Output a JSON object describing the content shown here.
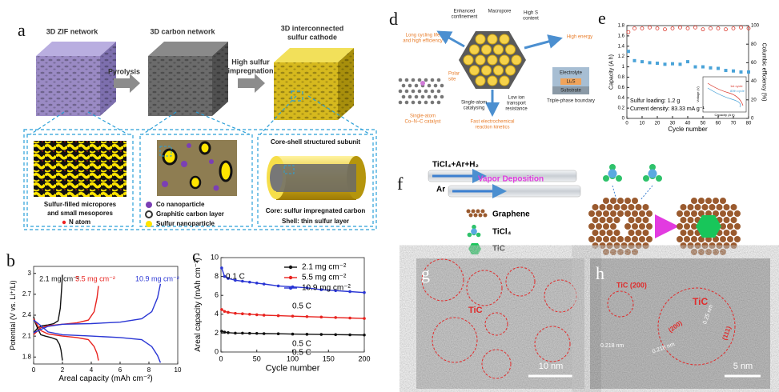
{
  "panel_a": {
    "label": "a",
    "title_1": "3D ZIF network",
    "title_2": "3D carbon network",
    "title_3": [
      "3D interconnected",
      "sulfur cathode"
    ],
    "arrow_1": "Pyrolysis",
    "arrow_2": [
      "High sulfur",
      "impregnation"
    ],
    "box_1": [
      "Sulfur-filled micropores",
      "and small mesopores"
    ],
    "n_atom": "N atom",
    "legend": [
      "Co nanoparticle",
      "Graphitic carbon layer",
      "Sulfur nanoparticle"
    ],
    "box_3_title": "Core-shell structured subunit",
    "box_3": [
      "Core: sulfur impregnated carbon",
      "Shell: thin sulfur layer"
    ]
  },
  "panel_d": {
    "label": "d",
    "confinement": [
      "Enhanced",
      "confinement"
    ],
    "macropore": "Macropore",
    "high_s": [
      "High S",
      "content"
    ],
    "cycling": [
      "Long cycling life",
      "and high efficiency"
    ],
    "energy": "High energy",
    "polar": [
      "Polar",
      "site"
    ],
    "catalyst": [
      "Single-atom",
      "Co–N–C catalyst"
    ],
    "catalysing": [
      "Single-atom",
      "catalysing"
    ],
    "transport": [
      "Low ion",
      "transport",
      "resistance"
    ],
    "electrolyte": "Electrolyte",
    "li2s": "Li₂S",
    "substrate": "Substrate",
    "boundary": "Triple-phase boundary",
    "kinetics": [
      "Fast electrochemical",
      "reaction kinetics"
    ]
  },
  "panel_f": {
    "label": "f",
    "gas": "TiCl₄+Ar+H₂",
    "process": "Vapor Deposition",
    "ar": "Ar",
    "legend": [
      "Graphene",
      "TiCl₄",
      "TiC"
    ]
  },
  "panel_g": {
    "label": "g",
    "phase": "TiC",
    "scale": "10 nm"
  },
  "panel_h": {
    "label": "h",
    "plane_1": "TiC (200)",
    "phase": "TiC",
    "plane_2": "(200)",
    "d_1": "0.25 nm",
    "d_2": "0.218 nm",
    "d_3": "0.218 nm",
    "plane_3": "(111)",
    "scale": "5 nm"
  },
  "chart_data": [
    {
      "type": "line",
      "panel_label": "b",
      "xlabel": "Areal capacity (mAh cm⁻²)",
      "ylabel": "Potential (V vs. Li⁺/Li)",
      "xlim": [
        0,
        10
      ],
      "xticks": [
        0,
        2,
        4,
        6,
        8,
        10
      ],
      "ylim": [
        1.7,
        3.1
      ],
      "yticks": [
        1.8,
        2.1,
        2.4,
        2.7,
        3.0
      ],
      "legend": "inline",
      "series": [
        {
          "name": "2.1 mg cm⁻²",
          "color": "#111111",
          "marker": "none",
          "x": [
            0,
            0.1,
            0.3,
            0.5,
            0.8,
            1.2,
            1.6,
            1.8,
            1.9,
            2.0,
            null,
            0,
            0.3,
            0.6,
            1.0,
            1.4,
            1.7,
            1.85,
            1.95,
            2.0
          ],
          "values": [
            2.38,
            2.3,
            2.2,
            2.12,
            2.1,
            2.08,
            2.05,
            1.98,
            1.9,
            1.75,
            null,
            2.15,
            2.22,
            2.25,
            2.26,
            2.28,
            2.32,
            2.5,
            2.8,
            2.98
          ]
        },
        {
          "name": "5.5 mg cm⁻²",
          "color": "#e8231f",
          "marker": "none",
          "x": [
            0,
            0.2,
            0.5,
            1,
            2,
            3,
            3.8,
            4.2,
            4.4,
            4.5,
            null,
            0,
            0.5,
            1,
            2,
            3,
            3.8,
            4.2,
            4.4,
            4.5
          ],
          "values": [
            2.35,
            2.28,
            2.18,
            2.13,
            2.1,
            2.08,
            2.05,
            1.95,
            1.85,
            1.75,
            null,
            2.12,
            2.22,
            2.25,
            2.27,
            2.29,
            2.33,
            2.45,
            2.65,
            2.82
          ]
        },
        {
          "name": "10.9 mg cm⁻²",
          "color": "#2a36d4",
          "marker": "none",
          "x": [
            0,
            0.5,
            1,
            2,
            4,
            6,
            7.5,
            8.2,
            8.6,
            8.8,
            null,
            0,
            1,
            2,
            4,
            6,
            7.5,
            8.2,
            8.6,
            8.8
          ],
          "values": [
            2.33,
            2.25,
            2.16,
            2.12,
            2.1,
            2.08,
            2.05,
            1.95,
            1.82,
            1.72,
            null,
            2.15,
            2.24,
            2.27,
            2.28,
            2.3,
            2.35,
            2.45,
            2.65,
            2.85
          ]
        }
      ]
    },
    {
      "type": "line",
      "panel_label": "c",
      "xlabel": "Cycle number",
      "ylabel": "Areal capacity (mAh cm⁻²)",
      "xlim": [
        0,
        200
      ],
      "xticks": [
        0,
        50,
        100,
        150,
        200
      ],
      "ylim": [
        0,
        10
      ],
      "yticks": [
        0,
        2,
        4,
        6,
        8,
        10
      ],
      "legend": "upper right",
      "annotations": [
        "0.1 C",
        "0.5 C",
        "0.5 C",
        "0.5 C"
      ],
      "series": [
        {
          "name": "2.1 mg cm⁻²",
          "color": "#111111",
          "marker": "circle",
          "x": [
            1,
            5,
            10,
            20,
            30,
            40,
            50,
            60,
            80,
            100,
            120,
            140,
            160,
            180,
            200
          ],
          "values": [
            2.2,
            2.1,
            2.05,
            2.0,
            2.0,
            1.98,
            1.97,
            1.95,
            1.93,
            1.9,
            1.88,
            1.86,
            1.84,
            1.82,
            1.8
          ]
        },
        {
          "name": "5.5 mg cm⁻²",
          "color": "#e8231f",
          "marker": "circle",
          "x": [
            1,
            5,
            10,
            20,
            30,
            40,
            50,
            60,
            80,
            100,
            120,
            140,
            160,
            180,
            200
          ],
          "values": [
            4.5,
            4.3,
            4.2,
            4.1,
            4.05,
            4.0,
            3.95,
            3.9,
            3.85,
            3.8,
            3.75,
            3.7,
            3.65,
            3.6,
            3.55
          ]
        },
        {
          "name": "10.9 mg cm⁻²",
          "color": "#2a36d4",
          "marker": "circle",
          "x": [
            1,
            5,
            10,
            20,
            30,
            40,
            50,
            60,
            80,
            100,
            120,
            140,
            160,
            180,
            200
          ],
          "values": [
            8.9,
            8.0,
            7.8,
            7.6,
            7.5,
            7.4,
            7.3,
            7.2,
            7.0,
            6.9,
            6.8,
            6.6,
            6.5,
            6.4,
            6.3
          ]
        }
      ]
    },
    {
      "type": "scatter",
      "panel_label": "e",
      "xlabel": "Cycle number",
      "ylabel": "Capacity (A h)",
      "y2label": "Columbic efficiency (%)",
      "xlim": [
        0,
        80
      ],
      "xticks": [
        0,
        10,
        20,
        30,
        40,
        50,
        60,
        70,
        80
      ],
      "ylim": [
        0,
        1.8
      ],
      "yticks": [
        0,
        0.2,
        0.4,
        0.6,
        0.8,
        1.0,
        1.2,
        1.4,
        1.6,
        1.8
      ],
      "y2lim": [
        0,
        100
      ],
      "y2ticks": [
        0,
        20,
        40,
        60,
        80,
        100
      ],
      "annotations": [
        "Sulfur loading: 1.2 g",
        "Current density: 83.33 mA g⁻¹"
      ],
      "inset": {
        "xlabel": "Capacity (A h)",
        "ylabel": "Voltage (V)",
        "legend": [
          "1st cycle",
          "80th cycle"
        ]
      },
      "series": [
        {
          "name": "Capacity",
          "color": "#4aa3d8",
          "marker": "square",
          "x": [
            1,
            5,
            10,
            15,
            20,
            25,
            30,
            35,
            40,
            45,
            50,
            55,
            60,
            65,
            70,
            75,
            80
          ],
          "values": [
            1.3,
            1.12,
            1.1,
            1.08,
            1.07,
            1.05,
            1.06,
            1.05,
            1.1,
            1.0,
            1.0,
            0.98,
            0.97,
            0.93,
            0.92,
            0.9,
            0.9
          ]
        },
        {
          "name": "Columbic efficiency",
          "color": "#d9362b",
          "marker": "open-circle",
          "axis": "y2",
          "x": [
            1,
            5,
            10,
            15,
            20,
            25,
            30,
            35,
            40,
            45,
            50,
            55,
            60,
            65,
            70,
            75,
            80
          ],
          "values": [
            93,
            97,
            97,
            98,
            97,
            96,
            97,
            98,
            97,
            98,
            96,
            97,
            97,
            96,
            97,
            98,
            97
          ]
        }
      ]
    }
  ]
}
